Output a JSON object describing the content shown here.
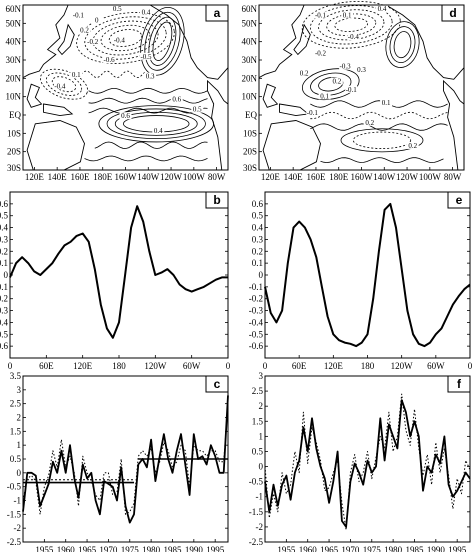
{
  "chart_data": [
    {
      "panel": "a",
      "type": "contour_map",
      "y_ticks": [
        "60N",
        "50N",
        "40N",
        "30N",
        "20N",
        "10N",
        "EQ",
        "10S",
        "20S",
        "30S"
      ],
      "x_ticks": [
        "120E",
        "140E",
        "160E",
        "180E",
        "160W",
        "140W",
        "120W",
        "100W",
        "80W"
      ],
      "contour_labels": [
        "0.5",
        "0.4",
        "-0.1",
        "0",
        "0.2",
        "-0.2",
        "-0.4",
        "-0.5",
        "-0.6",
        "0.3",
        "0.1",
        "0.6",
        "0.6",
        "0.5",
        "0.4",
        "-0.4"
      ]
    },
    {
      "panel": "b",
      "type": "line",
      "x": [
        0,
        10,
        20,
        30,
        40,
        50,
        60,
        70,
        80,
        90,
        100,
        110,
        120,
        130,
        140,
        150,
        160,
        170,
        180,
        190,
        200,
        210,
        220,
        230,
        240,
        250,
        260,
        270,
        280,
        290,
        300,
        310,
        320,
        330,
        340,
        350,
        360
      ],
      "x_ticks": [
        "0",
        "60E",
        "120E",
        "180",
        "120W",
        "60W",
        "0"
      ],
      "ylim": [
        -0.7,
        0.7
      ],
      "y_ticks": [
        "0.6",
        "0.5",
        "0.4",
        "0.3",
        "0.2",
        "0.1",
        "0",
        "-0.1",
        "-0.2",
        "-0.3",
        "-0.4",
        "-0.5",
        "-0.6"
      ],
      "series": [
        {
          "values": [
            -0.02,
            0.1,
            0.15,
            0.1,
            0.03,
            0.0,
            0.05,
            0.1,
            0.18,
            0.25,
            0.28,
            0.33,
            0.35,
            0.28,
            0.05,
            -0.25,
            -0.45,
            -0.53,
            -0.4,
            0.0,
            0.4,
            0.58,
            0.45,
            0.2,
            0.0,
            0.02,
            0.05,
            0.0,
            -0.08,
            -0.12,
            -0.14,
            -0.12,
            -0.1,
            -0.07,
            -0.04,
            -0.02,
            -0.02
          ]
        }
      ]
    },
    {
      "panel": "c",
      "type": "line",
      "years": [
        1950,
        1951,
        1952,
        1953,
        1954,
        1955,
        1956,
        1957,
        1958,
        1959,
        1960,
        1961,
        1962,
        1963,
        1964,
        1965,
        1966,
        1967,
        1968,
        1969,
        1970,
        1971,
        1972,
        1973,
        1974,
        1975,
        1976,
        1977,
        1978,
        1979,
        1980,
        1981,
        1982,
        1983,
        1984,
        1985,
        1986,
        1987,
        1988,
        1989,
        1990,
        1991,
        1992,
        1993,
        1994,
        1995,
        1996,
        1997,
        1998
      ],
      "x_ticks": [
        "1955",
        "1960",
        "1965",
        "1970",
        "1975",
        "1980",
        "1985",
        "1990",
        "1995"
      ],
      "ylim": [
        -2.5,
        3.5
      ],
      "y_ticks": [
        "3.5",
        "3",
        "2.5",
        "2",
        "1.5",
        "1",
        "0.5",
        "0",
        "-0.5",
        "-1",
        "-1.5",
        "-2",
        "-2.5"
      ],
      "series": [
        {
          "style": "solid",
          "values": [
            -1.4,
            0.0,
            0.0,
            -0.1,
            -1.2,
            -0.8,
            -0.4,
            0.4,
            0.0,
            0.8,
            0.0,
            1.0,
            -0.2,
            -0.9,
            0.3,
            -0.2,
            0.0,
            -1.0,
            -1.5,
            -0.3,
            -0.4,
            -0.5,
            -1.0,
            0.2,
            -1.2,
            -1.8,
            -1.5,
            0.3,
            0.5,
            0.2,
            1.2,
            -0.3,
            0.6,
            1.4,
            0.5,
            0.0,
            0.8,
            1.4,
            0.3,
            -0.8,
            1.4,
            0.5,
            0.6,
            0.3,
            1.0,
            0.6,
            0.0,
            0.0,
            2.8
          ]
        },
        {
          "style": "dotted",
          "values": [
            -1.0,
            -0.2,
            -0.1,
            -0.3,
            -1.5,
            -0.5,
            -0.1,
            0.8,
            0.2,
            1.2,
            0.2,
            0.6,
            0.0,
            -1.2,
            0.6,
            0.0,
            -0.3,
            -0.8,
            -1.0,
            0.0,
            0.0,
            -0.8,
            -0.7,
            0.5,
            -1.5,
            -1.4,
            -1.1,
            0.6,
            0.8,
            0.6,
            0.9,
            0.0,
            0.4,
            1.1,
            0.8,
            0.2,
            0.4,
            1.0,
            0.8,
            -0.5,
            1.0,
            0.8,
            0.8,
            0.6,
            0.8,
            0.8,
            0.4,
            0.4,
            2.5
          ]
        }
      ],
      "reference_lines": [
        {
          "style": "solid",
          "y": 0.5,
          "x_from": 1977,
          "x_to": 1998
        },
        {
          "style": "solid",
          "y": -0.35,
          "x_from": 1950,
          "x_to": 1976
        },
        {
          "style": "dotted",
          "y": 0.5,
          "x_from": 1977,
          "x_to": 1998
        },
        {
          "style": "dotted",
          "y": -0.25,
          "x_from": 1950,
          "x_to": 1976
        }
      ]
    },
    {
      "panel": "d",
      "type": "contour_map",
      "y_ticks": [
        "60N",
        "50N",
        "40N",
        "30N",
        "20N",
        "10N",
        "EQ",
        "10S",
        "20S",
        "30S"
      ],
      "x_ticks": [
        "120E",
        "140E",
        "160E",
        "180E",
        "160W",
        "140W",
        "120W",
        "100W",
        "80W"
      ],
      "contour_labels": [
        "0.4",
        "-0.1",
        "0.1",
        "-0.4",
        "-0.2",
        "-0.3",
        "0.2",
        "0.3",
        "0.2",
        "-0.1",
        "0.1",
        "0.1",
        "-0.1",
        "0.2",
        "0.2"
      ]
    },
    {
      "panel": "e",
      "type": "line",
      "x": [
        0,
        10,
        20,
        30,
        40,
        50,
        60,
        70,
        80,
        90,
        100,
        110,
        120,
        130,
        140,
        150,
        160,
        170,
        180,
        190,
        200,
        210,
        220,
        230,
        240,
        250,
        260,
        270,
        280,
        290,
        300,
        310,
        320,
        330,
        340,
        350,
        360
      ],
      "x_ticks": [
        "0",
        "60E",
        "120E",
        "180",
        "120W",
        "60W",
        "0"
      ],
      "ylim": [
        -0.7,
        0.7
      ],
      "y_ticks": [
        "0.6",
        "0.5",
        "0.4",
        "0.3",
        "0.2",
        "0.1",
        "0",
        "-0.1",
        "-0.2",
        "-0.3",
        "-0.4",
        "-0.5",
        "-0.6"
      ],
      "series": [
        {
          "values": [
            -0.1,
            -0.32,
            -0.4,
            -0.3,
            0.1,
            0.4,
            0.45,
            0.4,
            0.3,
            0.15,
            -0.1,
            -0.35,
            -0.5,
            -0.55,
            -0.57,
            -0.58,
            -0.6,
            -0.57,
            -0.5,
            -0.2,
            0.2,
            0.55,
            0.6,
            0.4,
            0.05,
            -0.3,
            -0.5,
            -0.58,
            -0.6,
            -0.57,
            -0.5,
            -0.45,
            -0.35,
            -0.25,
            -0.18,
            -0.12,
            -0.08
          ]
        }
      ]
    },
    {
      "panel": "f",
      "type": "line",
      "years": [
        1950,
        1951,
        1952,
        1953,
        1954,
        1955,
        1956,
        1957,
        1958,
        1959,
        1960,
        1961,
        1962,
        1963,
        1964,
        1965,
        1966,
        1967,
        1968,
        1969,
        1970,
        1971,
        1972,
        1973,
        1974,
        1975,
        1976,
        1977,
        1978,
        1979,
        1980,
        1981,
        1982,
        1983,
        1984,
        1985,
        1986,
        1987,
        1988,
        1989,
        1990,
        1991,
        1992,
        1993,
        1994,
        1995,
        1996,
        1997,
        1998
      ],
      "x_ticks": [
        "1955",
        "1960",
        "1965",
        "1970",
        "1975",
        "1980",
        "1985",
        "1990",
        "1995"
      ],
      "ylim": [
        -2.5,
        3.0
      ],
      "y_ticks": [
        "3",
        "2.5",
        "2",
        "1.5",
        "1",
        "0.5",
        "0",
        "-0.5",
        "-1",
        "-1.5",
        "-2",
        "-2.5"
      ],
      "series": [
        {
          "style": "solid",
          "values": [
            -0.5,
            -1.5,
            -0.6,
            -1.3,
            -0.6,
            -0.3,
            -1.1,
            -0.2,
            0.2,
            1.3,
            0.5,
            1.6,
            0.6,
            0.0,
            -0.4,
            -1.2,
            -0.5,
            0.5,
            -1.8,
            -2.0,
            -0.5,
            0.1,
            -0.2,
            -0.6,
            0.2,
            -0.2,
            0.0,
            1.6,
            0.2,
            1.4,
            1.0,
            0.6,
            2.2,
            1.8,
            1.0,
            1.5,
            1.0,
            -0.8,
            0.0,
            -0.2,
            0.4,
            0.1,
            1.0,
            -0.6,
            -1.0,
            -0.8,
            -0.5,
            -0.2,
            -0.4
          ]
        },
        {
          "style": "dotted",
          "values": [
            0.0,
            -1.7,
            -0.9,
            -1.5,
            -0.2,
            -0.9,
            -0.6,
            0.5,
            -0.2,
            1.8,
            0.1,
            1.3,
            0.8,
            0.2,
            -0.8,
            -0.7,
            -0.2,
            0.2,
            -1.2,
            -2.1,
            -0.2,
            0.4,
            -0.5,
            -0.2,
            0.5,
            -0.4,
            0.3,
            1.0,
            0.6,
            1.8,
            0.5,
            1.0,
            2.4,
            1.2,
            0.7,
            1.9,
            0.6,
            -0.3,
            0.4,
            -0.6,
            0.8,
            -0.2,
            0.6,
            -0.3,
            -1.4,
            -0.4,
            -0.9,
            0.2,
            -0.1
          ]
        }
      ]
    }
  ]
}
